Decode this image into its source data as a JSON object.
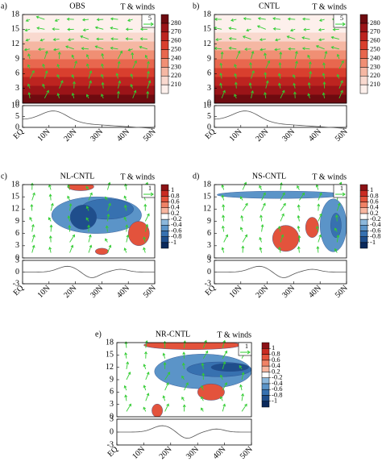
{
  "chart_data": [
    {
      "type": "contour",
      "label": "a)",
      "title": "OBS",
      "subtitle": "T & winds",
      "reference_vector": "5",
      "xlim": [
        0,
        50
      ],
      "xticks": [
        {
          "value": 0,
          "label": "EQ"
        },
        {
          "value": 10,
          "label": "10N"
        },
        {
          "value": 20,
          "label": "20N"
        },
        {
          "value": 30,
          "label": "30N"
        },
        {
          "value": 40,
          "label": "40N"
        },
        {
          "value": 50,
          "label": "50N"
        }
      ],
      "ylim": [
        0,
        18
      ],
      "yticks": [
        0,
        3,
        6,
        9,
        12,
        15,
        18
      ],
      "terrain_ylim": [
        0,
        10
      ],
      "terrain_yticks": [
        0,
        5,
        10
      ],
      "vector_color": "#33cc33",
      "colorbar": {
        "levels": [
          210,
          220,
          230,
          240,
          250,
          260,
          270,
          280
        ],
        "colors": [
          "#fdf0ec",
          "#f9d9cf",
          "#f5b7a3",
          "#f08f74",
          "#e8674e",
          "#d93f2e",
          "#bd2420",
          "#9b1418",
          "#6e0b10"
        ]
      }
    },
    {
      "type": "contour",
      "label": "b)",
      "title": "CNTL",
      "subtitle": "T & winds",
      "reference_vector": "5",
      "xlim": [
        0,
        50
      ],
      "xticks": [
        {
          "value": 0,
          "label": "EQ"
        },
        {
          "value": 10,
          "label": "10N"
        },
        {
          "value": 20,
          "label": "20N"
        },
        {
          "value": 30,
          "label": "30N"
        },
        {
          "value": 40,
          "label": "40N"
        },
        {
          "value": 50,
          "label": "50N"
        }
      ],
      "ylim": [
        0,
        18
      ],
      "yticks": [
        0,
        3,
        6,
        9,
        12,
        15,
        18
      ],
      "terrain_ylim": [
        0,
        10
      ],
      "terrain_yticks": [
        0,
        5,
        10
      ],
      "vector_color": "#33cc33",
      "colorbar": {
        "levels": [
          210,
          220,
          230,
          240,
          250,
          260,
          270,
          280
        ],
        "colors": [
          "#fdf0ec",
          "#f9d9cf",
          "#f5b7a3",
          "#f08f74",
          "#e8674e",
          "#d93f2e",
          "#bd2420",
          "#9b1418",
          "#6e0b10"
        ]
      }
    },
    {
      "type": "contour",
      "label": "c)",
      "title": "NL-CNTL",
      "subtitle": "T & winds",
      "reference_vector": "1",
      "xlim": [
        0,
        50
      ],
      "xticks": [
        {
          "value": 0,
          "label": "EQ"
        },
        {
          "value": 10,
          "label": "10N"
        },
        {
          "value": 20,
          "label": "20N"
        },
        {
          "value": 30,
          "label": "30N"
        },
        {
          "value": 40,
          "label": "40N"
        },
        {
          "value": 50,
          "label": "50N"
        }
      ],
      "ylim": [
        0,
        18
      ],
      "yticks": [
        0,
        3,
        6,
        9,
        12,
        15,
        18
      ],
      "terrain_ylim": [
        -3,
        3
      ],
      "terrain_yticks": [
        -3,
        0,
        3
      ],
      "vector_color": "#33cc33",
      "colorbar": {
        "levels": [
          -1,
          -0.8,
          -0.6,
          -0.4,
          -0.2,
          0.2,
          0.4,
          0.6,
          0.8,
          1
        ],
        "colors": [
          "#0b2a5c",
          "#1f4e8c",
          "#3771b0",
          "#5b94c8",
          "#8cb8dc",
          "#ffffff",
          "#f7b6a0",
          "#f08266",
          "#e3533c",
          "#c92b22",
          "#8c1216"
        ]
      }
    },
    {
      "type": "contour",
      "label": "d)",
      "title": "NS-CNTL",
      "subtitle": "T & winds",
      "reference_vector": "1",
      "xlim": [
        0,
        50
      ],
      "xticks": [
        {
          "value": 0,
          "label": "EQ"
        },
        {
          "value": 10,
          "label": "10N"
        },
        {
          "value": 20,
          "label": "20N"
        },
        {
          "value": 30,
          "label": "30N"
        },
        {
          "value": 40,
          "label": "40N"
        },
        {
          "value": 50,
          "label": "50N"
        }
      ],
      "ylim": [
        0,
        18
      ],
      "yticks": [
        0,
        3,
        6,
        9,
        12,
        15,
        18
      ],
      "terrain_ylim": [
        -3,
        3
      ],
      "terrain_yticks": [
        -3,
        0,
        3
      ],
      "vector_color": "#33cc33",
      "colorbar": {
        "levels": [
          -1,
          -0.8,
          -0.6,
          -0.4,
          -0.2,
          0.2,
          0.4,
          0.6,
          0.8,
          1
        ],
        "colors": [
          "#0b2a5c",
          "#1f4e8c",
          "#3771b0",
          "#5b94c8",
          "#8cb8dc",
          "#ffffff",
          "#f7b6a0",
          "#f08266",
          "#e3533c",
          "#c92b22",
          "#8c1216"
        ]
      }
    },
    {
      "type": "contour",
      "label": "e)",
      "title": "NR-CNTL",
      "subtitle": "T & winds",
      "reference_vector": "1",
      "xlim": [
        0,
        50
      ],
      "xticks": [
        {
          "value": 0,
          "label": "EQ"
        },
        {
          "value": 10,
          "label": "10N"
        },
        {
          "value": 20,
          "label": "20N"
        },
        {
          "value": 30,
          "label": "30N"
        },
        {
          "value": 40,
          "label": "40N"
        },
        {
          "value": 50,
          "label": "50N"
        }
      ],
      "ylim": [
        0,
        18
      ],
      "yticks": [
        0,
        3,
        6,
        9,
        12,
        15,
        18
      ],
      "terrain_ylim": [
        -3,
        3
      ],
      "terrain_yticks": [
        -3,
        0,
        3
      ],
      "vector_color": "#33cc33",
      "colorbar": {
        "levels": [
          -1,
          -0.8,
          -0.6,
          -0.4,
          -0.2,
          0.2,
          0.4,
          0.6,
          0.8,
          1
        ],
        "colors": [
          "#0b2a5c",
          "#1f4e8c",
          "#3771b0",
          "#5b94c8",
          "#8cb8dc",
          "#ffffff",
          "#f7b6a0",
          "#f08266",
          "#e3533c",
          "#c92b22",
          "#8c1216"
        ]
      }
    }
  ]
}
